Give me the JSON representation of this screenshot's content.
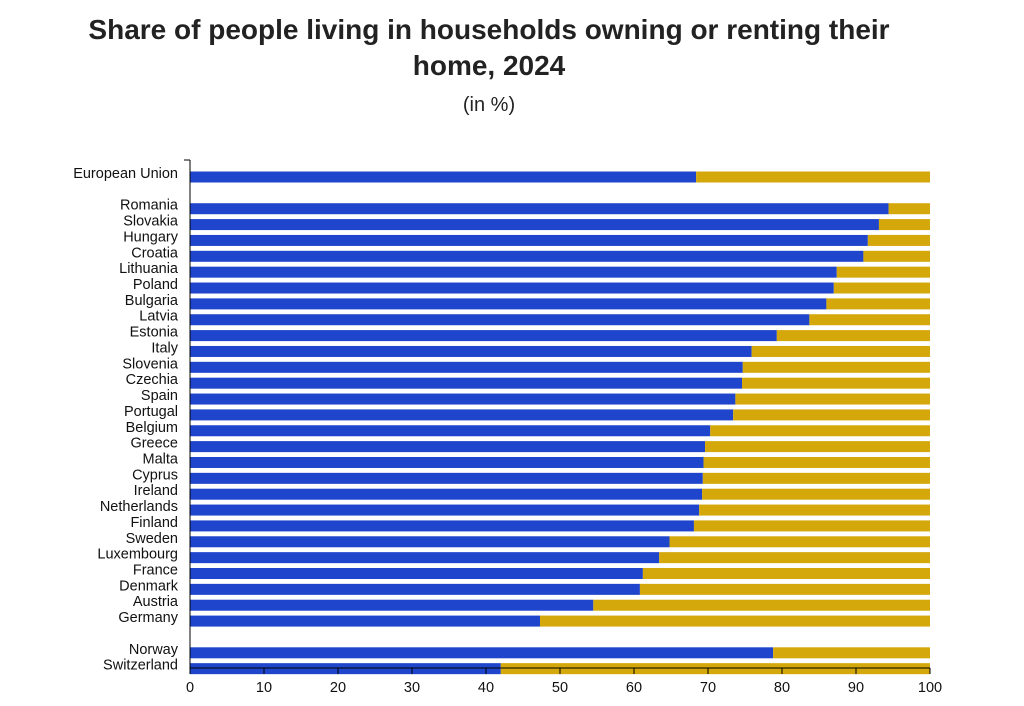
{
  "chart_data": {
    "type": "bar",
    "orientation": "horizontal",
    "stacked": true,
    "title_lines": [
      "Share of people living in households owning or renting their",
      "home, 2024"
    ],
    "subtitle": "(in %)",
    "xlim": [
      0,
      100
    ],
    "xticks": [
      "0",
      "10",
      "20",
      "30",
      "40",
      "50",
      "60",
      "70",
      "80",
      "90",
      "100"
    ],
    "legend": "none",
    "colors": {
      "owner": "#1f45cc",
      "tenant": "#d4a80a"
    },
    "groups": [
      {
        "categories": [
          "European Union"
        ],
        "owner_values": [
          68.4
        ]
      },
      {
        "categories": [
          "Romania",
          "Slovakia",
          "Hungary",
          "Croatia",
          "Lithuania",
          "Poland",
          "Bulgaria",
          "Latvia",
          "Estonia",
          "Italy",
          "Slovenia",
          "Czechia",
          "Spain",
          "Portugal",
          "Belgium",
          "Greece",
          "Malta",
          "Cyprus",
          "Ireland",
          "Netherlands",
          "Finland",
          "Sweden",
          "Luxembourg",
          "France",
          "Denmark",
          "Austria",
          "Germany"
        ],
        "owner_values": [
          94.4,
          93.1,
          91.6,
          91.0,
          87.4,
          87.0,
          86.0,
          83.7,
          79.3,
          75.9,
          74.7,
          74.6,
          73.7,
          73.4,
          70.3,
          69.6,
          69.4,
          69.3,
          69.2,
          68.8,
          68.1,
          64.8,
          63.4,
          61.2,
          60.8,
          54.5,
          47.3
        ]
      },
      {
        "categories": [
          "Norway",
          "Switzerland"
        ],
        "owner_values": [
          78.8,
          42.0
        ]
      }
    ]
  }
}
